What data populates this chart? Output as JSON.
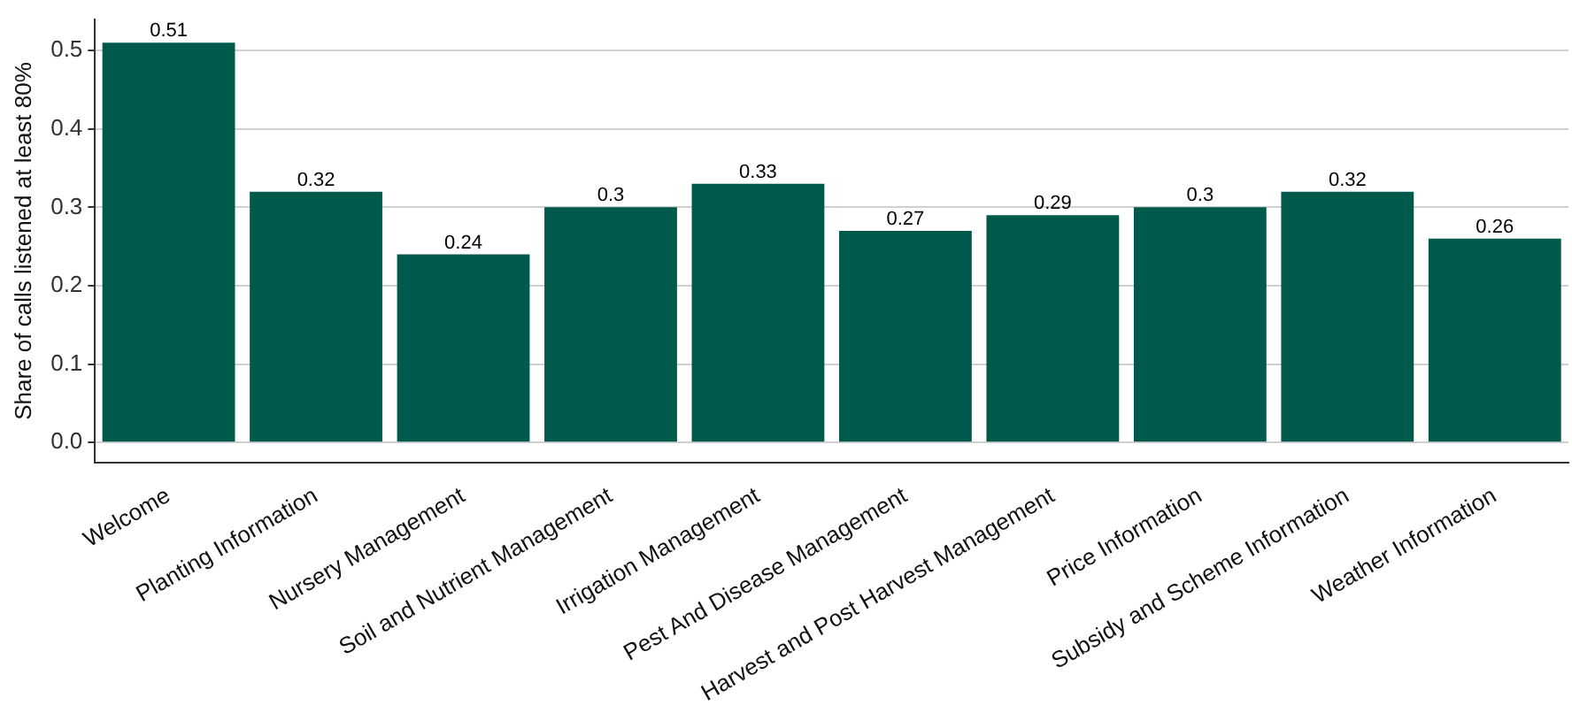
{
  "chart_data": {
    "type": "bar",
    "ylabel": "Share of calls listened at least 80%",
    "categories": [
      "Welcome",
      "Planting Information",
      "Nursery Management",
      "Soil and Nutrient Management",
      "Irrigation Management",
      "Pest And Disease Management",
      "Harvest and Post Harvest Management",
      "Price Information",
      "Subsidy and Scheme Information",
      "Weather Information"
    ],
    "values": [
      0.51,
      0.32,
      0.24,
      0.3,
      0.33,
      0.27,
      0.29,
      0.3,
      0.32,
      0.26
    ],
    "color": "#005a4b",
    "ylim": [
      -0.026,
      0.54
    ],
    "yticks": [
      {
        "value": 0,
        "label": "0.0"
      },
      0.1,
      0.2,
      0.3,
      0.4,
      0.5
    ],
    "grid": "y",
    "data_labels": true,
    "legend": false
  }
}
